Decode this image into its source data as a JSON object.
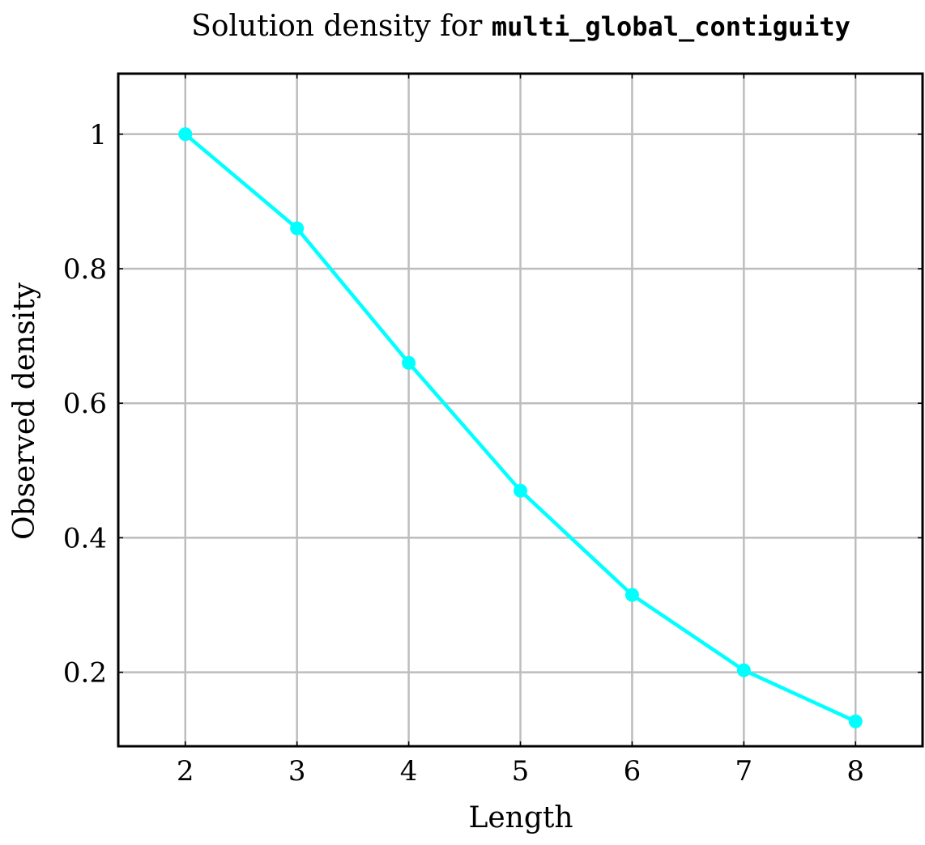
{
  "chart_data": {
    "type": "line",
    "title_prefix": "Solution density for ",
    "title_code": "multi_global_contiguity",
    "xlabel": "Length",
    "ylabel": "Observed density",
    "xlim": [
      1.4,
      8.6
    ],
    "ylim": [
      0.09,
      1.09
    ],
    "x_ticks": [
      2,
      3,
      4,
      5,
      6,
      7,
      8
    ],
    "y_ticks": [
      0.2,
      0.4,
      0.6,
      0.8,
      1
    ],
    "y_tick_labels": [
      "0.2",
      "0.4",
      "0.6",
      "0.8",
      "1"
    ],
    "grid": true,
    "series": [
      {
        "color": "#00ffff",
        "marker": "circle",
        "x": [
          2,
          3,
          4,
          5,
          6,
          7,
          8
        ],
        "y": [
          1.0,
          0.86,
          0.66,
          0.47,
          0.315,
          0.203,
          0.127
        ]
      }
    ]
  }
}
